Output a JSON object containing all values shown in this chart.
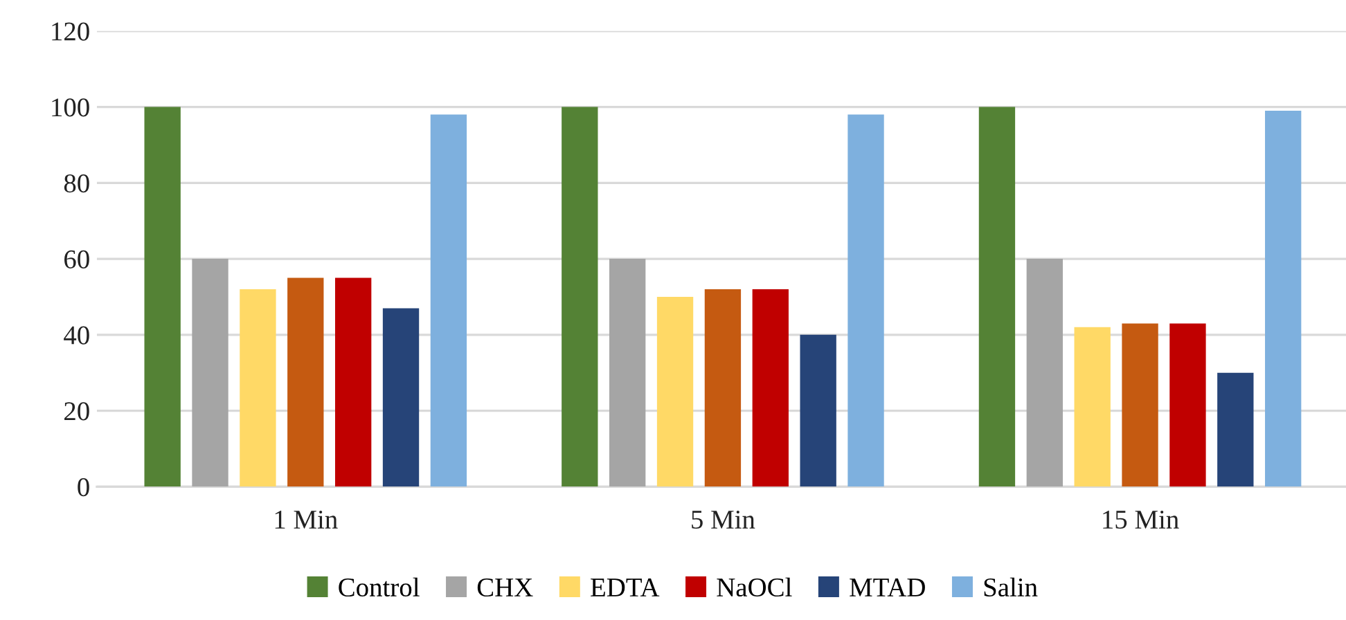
{
  "chart_data": {
    "type": "bar",
    "categories": [
      "1 Min",
      "5 Min",
      "15 Min"
    ],
    "series": [
      {
        "name": "Control",
        "color": "#548235",
        "values": [
          100,
          100,
          100
        ]
      },
      {
        "name": "CHX",
        "color": "#a5a5a5",
        "values": [
          60,
          60,
          60
        ]
      },
      {
        "name": "EDTA",
        "color": "#ffd966",
        "values": [
          52,
          50,
          42
        ]
      },
      {
        "color": "#c55a11",
        "values": [
          55,
          52,
          43
        ]
      },
      {
        "name": "NaOCl",
        "color": "#c00000",
        "values": [
          55,
          52,
          43
        ]
      },
      {
        "name": "MTAD",
        "color": "#264478",
        "values": [
          47,
          40,
          30
        ]
      },
      {
        "name": "Salin",
        "color": "#7eb0de",
        "values": [
          98,
          98,
          99
        ]
      }
    ],
    "ylim": [
      0,
      120
    ],
    "yticks": [
      0,
      20,
      40,
      60,
      80,
      100,
      120
    ],
    "grid": "y",
    "legend": "bottom"
  }
}
